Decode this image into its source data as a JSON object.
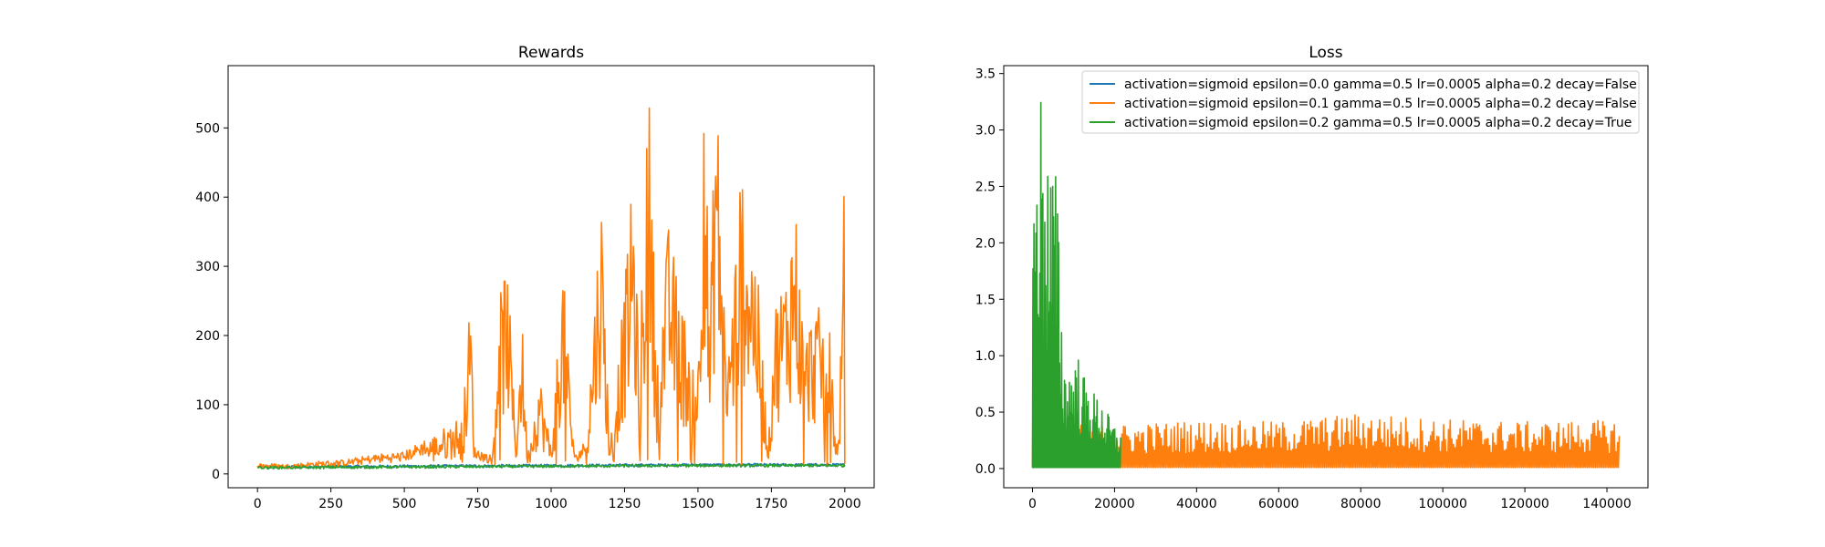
{
  "chart_data": [
    {
      "type": "line",
      "title": "Rewards",
      "xlabel": "",
      "ylabel": "",
      "xlim": [
        -100,
        2100
      ],
      "ylim": [
        -20,
        590
      ],
      "xticks": [
        0,
        250,
        500,
        750,
        1000,
        1250,
        1500,
        1750,
        2000
      ],
      "yticks": [
        0,
        100,
        200,
        300,
        400,
        500
      ],
      "xtick_labels": [
        "0",
        "250",
        "500",
        "750",
        "1000",
        "1250",
        "1500",
        "1750",
        "2000"
      ],
      "ytick_labels": [
        "0",
        "100",
        "200",
        "300",
        "400",
        "500"
      ],
      "grid": false,
      "legend": "none",
      "series": [
        {
          "color": "#1f77b4",
          "x": [
            0,
            2000
          ],
          "y": [
            10,
            10
          ],
          "noise": 2,
          "points": [
            [
              0,
              10
            ],
            [
              500,
              11
            ],
            [
              1000,
              12
            ],
            [
              1500,
              13
            ],
            [
              2000,
              13
            ]
          ]
        },
        {
          "color": "#ff7f0e",
          "points": [
            [
              0,
              12
            ],
            [
              100,
              11
            ],
            [
              200,
              14
            ],
            [
              300,
              16
            ],
            [
              400,
              22
            ],
            [
              500,
              25
            ],
            [
              600,
              45
            ],
            [
              700,
              70
            ],
            [
              725,
              210
            ],
            [
              740,
              30
            ],
            [
              800,
              20
            ],
            [
              820,
              195
            ],
            [
              850,
              255
            ],
            [
              880,
              40
            ],
            [
              900,
              190
            ],
            [
              920,
              20
            ],
            [
              960,
              120
            ],
            [
              1000,
              30
            ],
            [
              1040,
              245
            ],
            [
              1080,
              20
            ],
            [
              1120,
              40
            ],
            [
              1170,
              335
            ],
            [
              1200,
              30
            ],
            [
              1250,
              220
            ],
            [
              1280,
              350
            ],
            [
              1300,
              110
            ],
            [
              1330,
              485
            ],
            [
              1360,
              130
            ],
            [
              1400,
              290
            ],
            [
              1450,
              190
            ],
            [
              1500,
              130
            ],
            [
              1520,
              560
            ],
            [
              1540,
              150
            ],
            [
              1560,
              495
            ],
            [
              1600,
              130
            ],
            [
              1650,
              365
            ],
            [
              1700,
              250
            ],
            [
              1740,
              30
            ],
            [
              1760,
              200
            ],
            [
              1800,
              240
            ],
            [
              1830,
              335
            ],
            [
              1860,
              160
            ],
            [
              1900,
              200
            ],
            [
              1950,
              170
            ],
            [
              1975,
              20
            ],
            [
              1990,
              190
            ],
            [
              2000,
              378
            ]
          ],
          "noise": 60
        },
        {
          "color": "#2ca02c",
          "points": [
            [
              0,
              9
            ],
            [
              500,
              10
            ],
            [
              1000,
              11
            ],
            [
              1500,
              12
            ],
            [
              2000,
              12
            ]
          ],
          "noise": 2
        }
      ]
    },
    {
      "type": "line",
      "title": "Loss",
      "xlabel": "",
      "ylabel": "",
      "xlim": [
        -7000,
        150000
      ],
      "ylim": [
        -0.17,
        3.57
      ],
      "xticks": [
        0,
        20000,
        40000,
        60000,
        80000,
        100000,
        120000,
        140000
      ],
      "yticks": [
        0.0,
        0.5,
        1.0,
        1.5,
        2.0,
        2.5,
        3.0,
        3.5
      ],
      "xtick_labels": [
        "0",
        "20000",
        "40000",
        "60000",
        "80000",
        "100000",
        "120000",
        "140000"
      ],
      "ytick_labels": [
        "0.0",
        "0.5",
        "1.0",
        "1.5",
        "2.0",
        "2.5",
        "3.0",
        "3.5"
      ],
      "grid": false,
      "legend": "top-right",
      "series": [
        {
          "name": "activation=sigmoid epsilon=0.0 gamma=0.5 lr=0.0005 alpha=0.2 decay=False",
          "color": "#1f77b4",
          "points": [
            [
              0,
              0.02
            ],
            [
              2000,
              0.05
            ],
            [
              4000,
              0.03
            ]
          ],
          "noise": 0.03
        },
        {
          "name": "activation=sigmoid epsilon=0.1 gamma=0.5 lr=0.0005 alpha=0.2 decay=False",
          "color": "#ff7f0e",
          "points": [
            [
              0,
              1.0
            ],
            [
              5000,
              0.3
            ],
            [
              20000,
              0.3
            ],
            [
              40000,
              0.33
            ],
            [
              60000,
              0.32
            ],
            [
              80000,
              0.38
            ],
            [
              100000,
              0.34
            ],
            [
              120000,
              0.32
            ],
            [
              143000,
              0.33
            ]
          ],
          "noise": 0.18
        },
        {
          "name": "activation=sigmoid epsilon=0.2 gamma=0.5 lr=0.0005 alpha=0.2 decay=True",
          "color": "#2ca02c",
          "points": [
            [
              0,
              2.0
            ],
            [
              1000,
              2.95
            ],
            [
              1500,
              3.4
            ],
            [
              2500,
              2.9
            ],
            [
              3000,
              3.05
            ],
            [
              4000,
              2.55
            ],
            [
              5500,
              2.5
            ],
            [
              6500,
              1.95
            ],
            [
              7500,
              0.9
            ],
            [
              9000,
              0.85
            ],
            [
              11000,
              0.95
            ],
            [
              13000,
              0.7
            ],
            [
              15000,
              0.62
            ],
            [
              17000,
              0.55
            ],
            [
              19000,
              0.4
            ],
            [
              21500,
              0.3
            ]
          ],
          "noise": 0.3
        }
      ]
    }
  ]
}
